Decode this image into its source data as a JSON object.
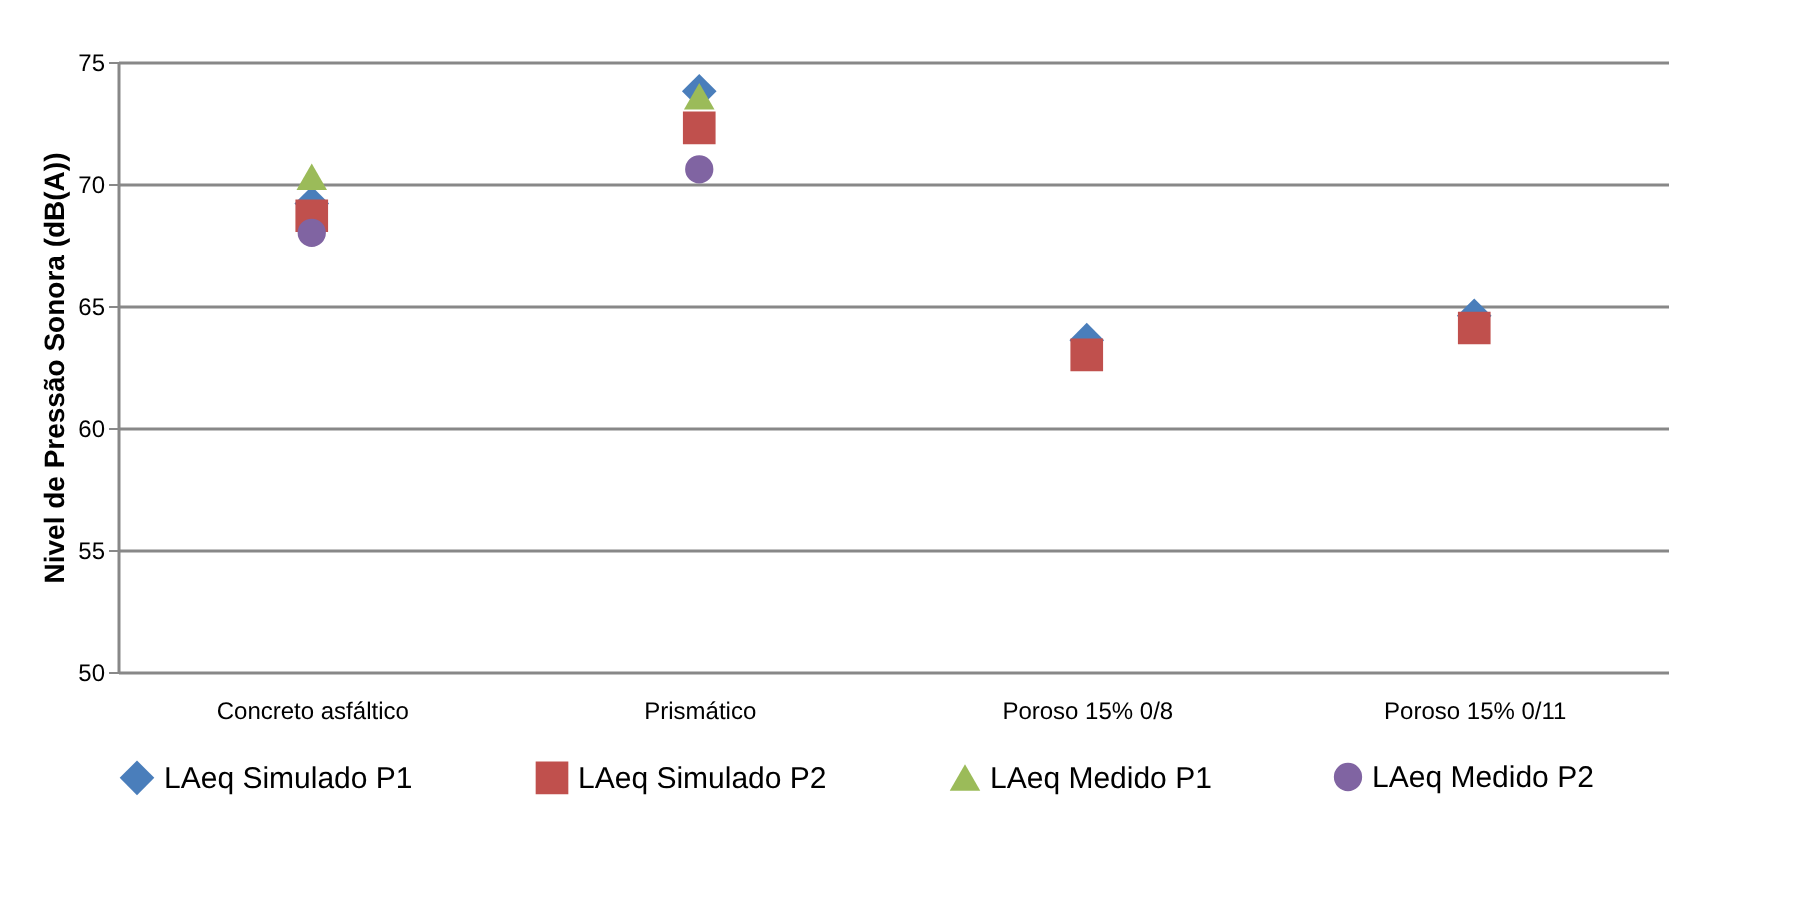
{
  "chart_data": {
    "type": "scatter",
    "ylabel": "Nivel de Pressão Sonora (dB(A))",
    "categories": [
      "Concreto asfáltico",
      "Prismático",
      "Poroso 15% 0/8",
      "Poroso 15% 0/11"
    ],
    "series": [
      {
        "name": "LAeq Simulado P1",
        "color": "#4a7ebb",
        "marker": "diamond",
        "values": [
          69.2,
          73.8,
          63.6,
          64.6
        ]
      },
      {
        "name": "LAeq Simulado P2",
        "color": "#c0504d",
        "marker": "square",
        "values": [
          68.7,
          72.3,
          63.0,
          64.1
        ]
      },
      {
        "name": "LAeq Medido P1",
        "color": "#9bbb59",
        "marker": "triangle",
        "values": [
          70.3,
          73.6,
          null,
          null
        ]
      },
      {
        "name": "LAeq Medido P2",
        "color": "#8064a2",
        "marker": "circle",
        "values": [
          68.0,
          70.6,
          null,
          null
        ]
      }
    ],
    "ylim": [
      50,
      75
    ],
    "yticks": [
      50,
      55,
      60,
      65,
      70,
      75
    ],
    "grid": "y",
    "legend": "bottom"
  }
}
